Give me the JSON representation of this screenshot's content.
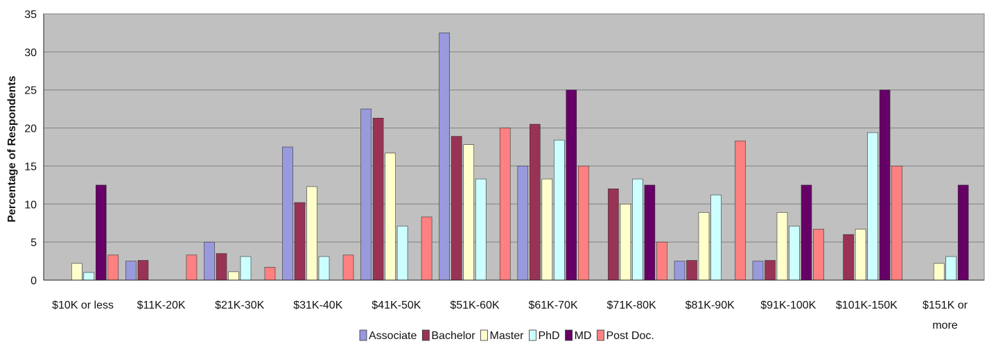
{
  "chart_data": {
    "type": "bar",
    "title": "",
    "xlabel": "",
    "ylabel": "Percentage of Respondents",
    "ylim": [
      0,
      35
    ],
    "yticks": [
      0,
      5,
      10,
      15,
      20,
      25,
      30,
      35
    ],
    "grid": true,
    "legend_position": "bottom",
    "categories": [
      [
        "$10K or less"
      ],
      [
        "$11K-20K"
      ],
      [
        "$21K-30K"
      ],
      [
        "$31K-40K"
      ],
      [
        "$41K-50K"
      ],
      [
        "$51K-60K"
      ],
      [
        "$61K-70K"
      ],
      [
        "$71K-80K"
      ],
      [
        "$81K-90K"
      ],
      [
        "$91K-100K"
      ],
      [
        "$101K-150K"
      ],
      [
        "$151K or",
        "more"
      ]
    ],
    "series": [
      {
        "name": "Associate",
        "color": "#9999dd",
        "values": [
          0,
          2.5,
          5.0,
          17.5,
          22.5,
          32.5,
          15.0,
          0,
          2.5,
          2.5,
          0,
          0
        ]
      },
      {
        "name": "Bachelor",
        "color": "#993355",
        "values": [
          0,
          2.6,
          3.5,
          10.2,
          21.3,
          18.9,
          20.5,
          12.0,
          2.6,
          2.6,
          6.0,
          0
        ]
      },
      {
        "name": "Master",
        "color": "#ffffcc",
        "values": [
          2.2,
          0,
          1.1,
          12.3,
          16.7,
          17.8,
          13.3,
          10.0,
          8.9,
          8.9,
          6.7,
          2.2
        ]
      },
      {
        "name": "PhD",
        "color": "#ccffff",
        "values": [
          1.0,
          0,
          3.1,
          3.1,
          7.1,
          13.3,
          18.4,
          13.3,
          11.2,
          7.1,
          19.4,
          3.1
        ]
      },
      {
        "name": "MD",
        "color": "#660066",
        "values": [
          12.5,
          0,
          0,
          0,
          0,
          0,
          25.0,
          12.5,
          0,
          12.5,
          25.0,
          12.5
        ]
      },
      {
        "name": "Post Doc.",
        "color": "#ff8080",
        "values": [
          3.3,
          3.3,
          1.7,
          3.3,
          8.3,
          20.0,
          15.0,
          5.0,
          18.3,
          6.7,
          15.0,
          0
        ]
      }
    ]
  }
}
